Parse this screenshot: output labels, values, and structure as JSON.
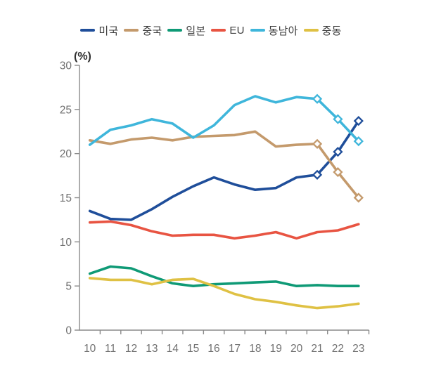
{
  "page": {
    "background": "#ffffff"
  },
  "chart_data": {
    "type": "line",
    "title": "",
    "unit_label": "(%)",
    "xlabel": "",
    "ylabel": "(%)",
    "x": [
      "10",
      "11",
      "12",
      "13",
      "14",
      "15",
      "16",
      "17",
      "18",
      "19",
      "20",
      "21",
      "22",
      "23"
    ],
    "y_ticks": [
      0,
      5,
      10,
      15,
      20,
      25,
      30
    ],
    "ylim": [
      0,
      30
    ],
    "grid": false,
    "legend_position": "top",
    "axis_color": "#8a8a8a",
    "tick_label_color": "#717171",
    "marker_shape": "open-diamond",
    "series": [
      {
        "id": "usa",
        "name": "미국",
        "color": "#1f4e9a",
        "values": [
          13.5,
          12.6,
          12.5,
          13.7,
          15.1,
          16.3,
          17.3,
          16.5,
          15.9,
          16.1,
          17.3,
          17.6,
          20.2,
          23.7
        ],
        "marker_start_index": 11
      },
      {
        "id": "china",
        "name": "중국",
        "color": "#c49a6c",
        "values": [
          21.5,
          21.1,
          21.6,
          21.8,
          21.5,
          21.9,
          22.0,
          22.1,
          22.5,
          20.8,
          21.0,
          21.1,
          17.9,
          15.0
        ],
        "marker_start_index": 11
      },
      {
        "id": "japan",
        "name": "일본",
        "color": "#0f9a76",
        "values": [
          6.4,
          7.2,
          7.0,
          6.1,
          5.3,
          5.0,
          5.2,
          5.3,
          5.4,
          5.5,
          5.0,
          5.1,
          5.0,
          5.0
        ],
        "marker_start_index": null
      },
      {
        "id": "eu",
        "name": "EU",
        "color": "#e85442",
        "values": [
          12.2,
          12.3,
          11.9,
          11.2,
          10.7,
          10.8,
          10.8,
          10.4,
          10.7,
          11.1,
          10.4,
          11.1,
          11.3,
          12.0
        ],
        "marker_start_index": null
      },
      {
        "id": "sea",
        "name": "동남아",
        "color": "#3fb6db",
        "values": [
          21.0,
          22.7,
          23.2,
          23.9,
          23.4,
          21.8,
          23.2,
          25.5,
          26.5,
          25.8,
          26.4,
          26.2,
          23.9,
          21.4
        ],
        "marker_start_index": 11
      },
      {
        "id": "mideast",
        "name": "중동",
        "color": "#dfc144",
        "values": [
          5.9,
          5.7,
          5.7,
          5.2,
          5.7,
          5.8,
          5.0,
          4.1,
          3.5,
          3.2,
          2.8,
          2.5,
          2.7,
          3.0
        ],
        "marker_start_index": null
      }
    ]
  }
}
